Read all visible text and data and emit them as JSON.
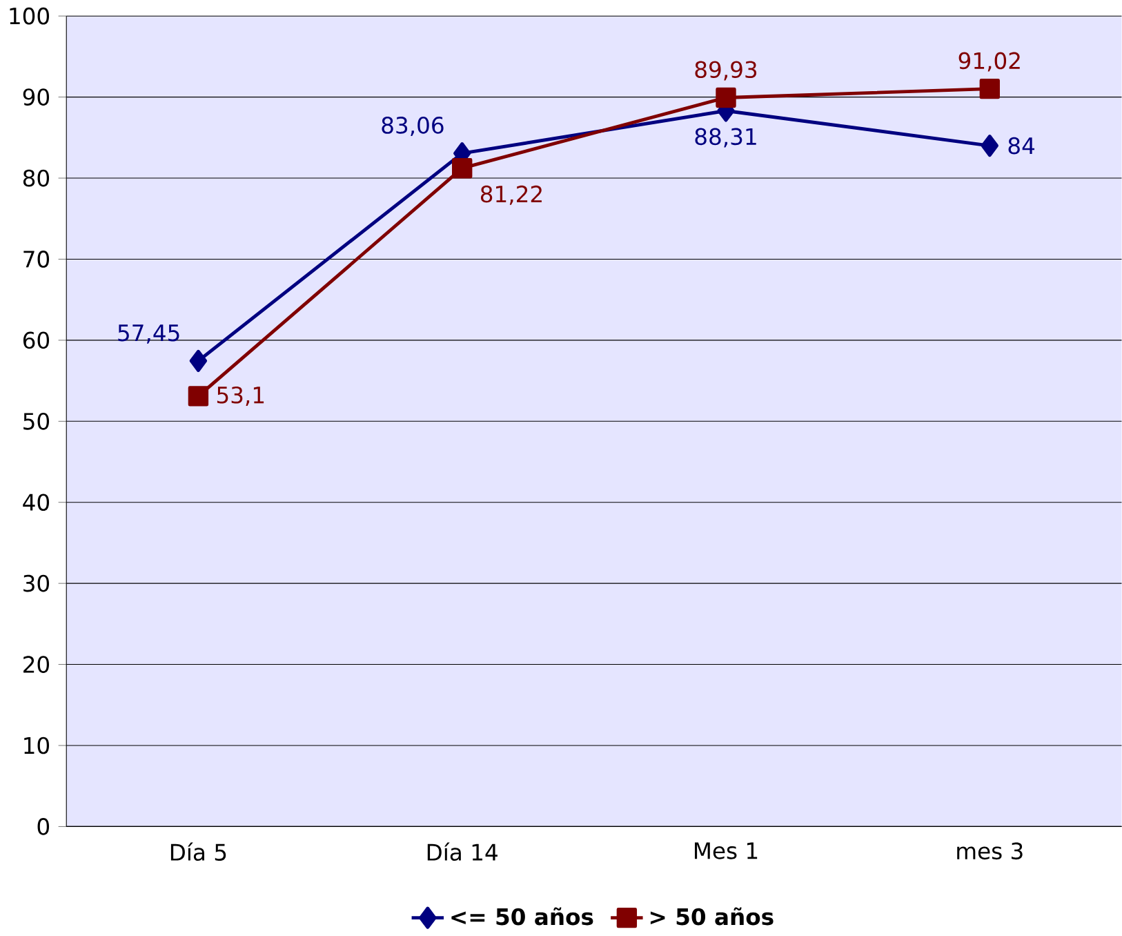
{
  "chart_data": {
    "type": "line",
    "categories": [
      "Día 5",
      "Día 14",
      "Mes 1",
      "mes 3"
    ],
    "series": [
      {
        "name": "<= 50 años",
        "color": "#000080",
        "marker": "diamond",
        "values": [
          57.45,
          83.06,
          88.31,
          84
        ],
        "value_labels": [
          "57,45",
          "83,06",
          "88,31",
          "84"
        ]
      },
      {
        "name": "> 50 años",
        "color": "#800000",
        "marker": "square",
        "values": [
          53.1,
          81.22,
          89.93,
          91.02
        ],
        "value_labels": [
          "53,1",
          "81,22",
          "89,93",
          "91,02"
        ]
      }
    ],
    "ylim": [
      0,
      100
    ],
    "yticks": [
      0,
      10,
      20,
      30,
      40,
      50,
      60,
      70,
      80,
      90,
      100
    ],
    "grid": "y",
    "legend": "bottom",
    "line_style": "solid"
  }
}
